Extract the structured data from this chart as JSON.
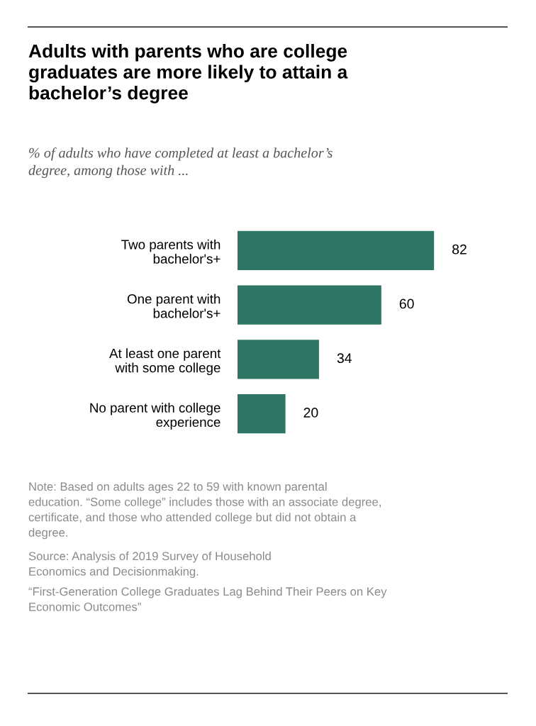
{
  "chart_data": {
    "type": "bar",
    "orientation": "horizontal",
    "title": "Adults with parents who are college\ngraduates are more likely to attain a\nbachelor’s degree",
    "subtitle": "% of adults who have completed at least a bachelor’s\ndegree, among those with ...",
    "categories": [
      "Two parents with\nbachelor's+",
      "One parent with\nbachelor's+",
      "At least one parent\nwith some college",
      "No parent with college\nexperience"
    ],
    "values": [
      82,
      60,
      34,
      20
    ],
    "color": "#2e7563",
    "data_labels": true,
    "grid": false,
    "legend": false,
    "annotations": [
      "Note: Based on adults ages 22 to 59 with known parental\neducation. “Some college” includes those with an associate degree,\ncertificate, and those who attended college but did not obtain a\ndegree.",
      "Source: Analysis of 2019 Survey of Household\nEconomics and Decisionmaking.",
      "“First-Generation College Graduates Lag Behind Their Peers on Key\nEconomic Outcomes”"
    ]
  }
}
